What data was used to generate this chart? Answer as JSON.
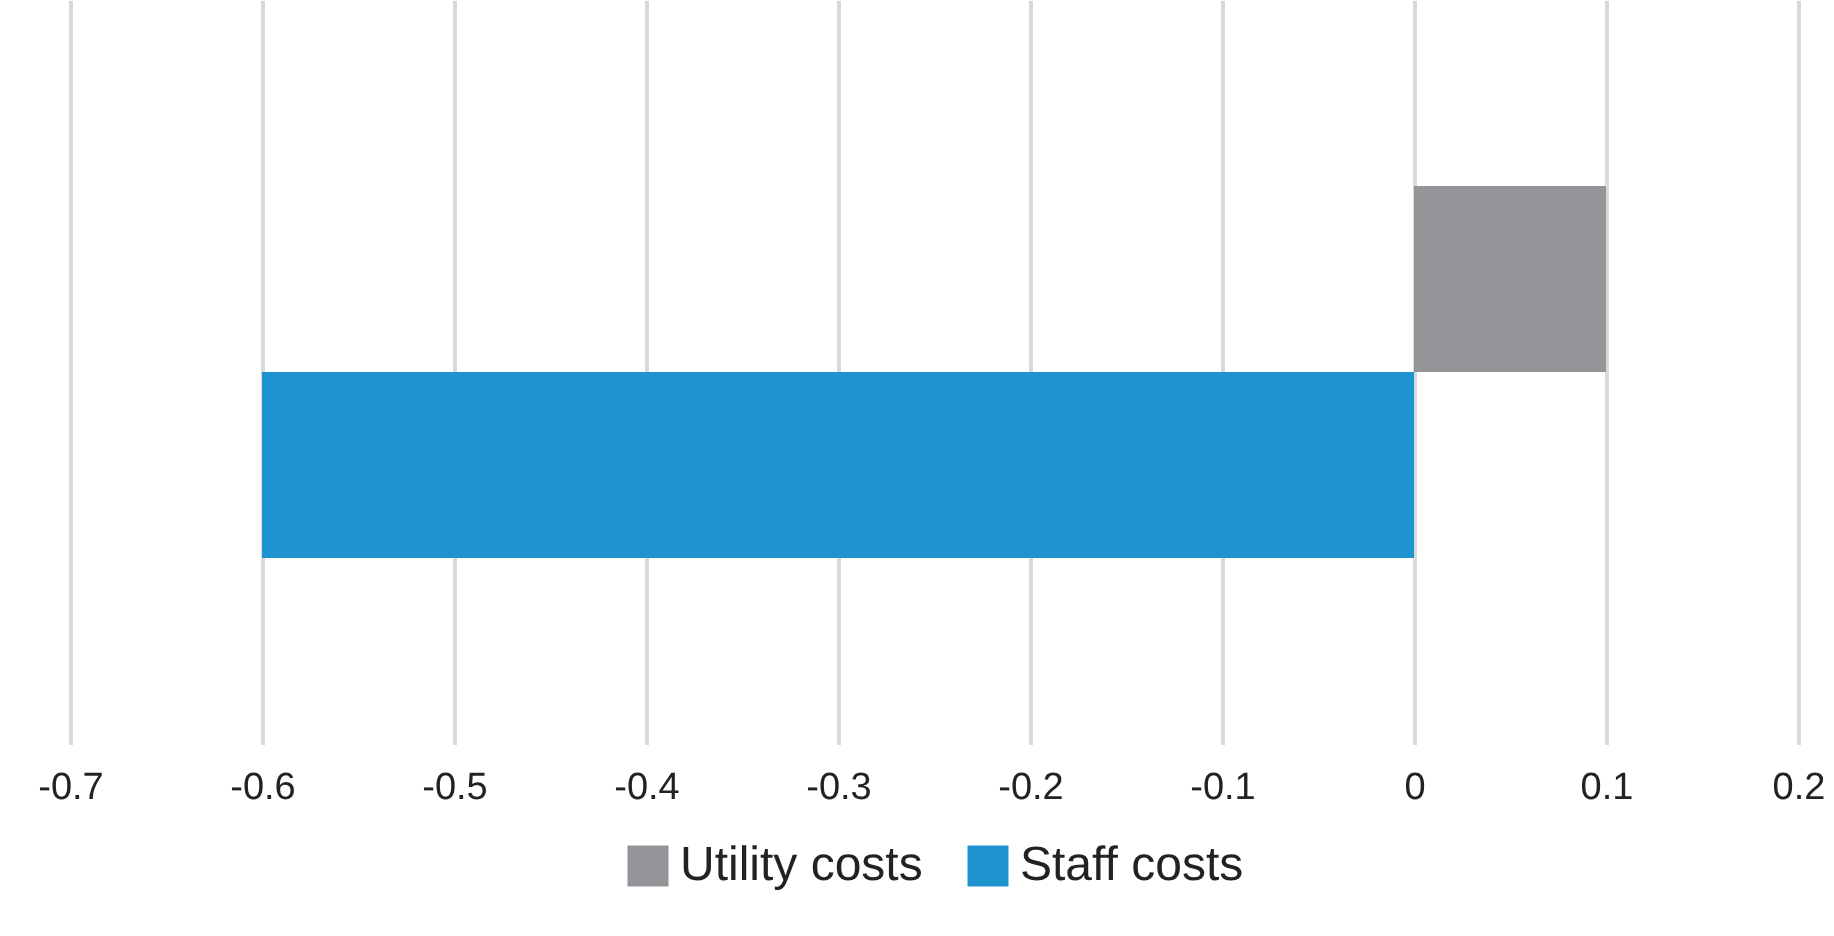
{
  "chart_data": {
    "type": "bar",
    "orientation": "horizontal",
    "categories": [
      null
    ],
    "series": [
      {
        "name": "Utility costs",
        "color": "#939598",
        "values": [
          0.1
        ]
      },
      {
        "name": "Staff costs",
        "color": "#1e93d0",
        "values": [
          -0.6
        ]
      }
    ],
    "xlim": [
      -0.7,
      0.2
    ],
    "xticks": [
      {
        "value": -0.7,
        "label": "-0.7"
      },
      {
        "value": -0.6,
        "label": "-0.6"
      },
      {
        "value": -0.5,
        "label": "-0.5"
      },
      {
        "value": -0.4,
        "label": "-0.4"
      },
      {
        "value": -0.3,
        "label": "-0.3"
      },
      {
        "value": -0.2,
        "label": "-0.2"
      },
      {
        "value": -0.1,
        "label": "-0.1"
      },
      {
        "value": 0,
        "label": "0"
      },
      {
        "value": 0.1,
        "label": "0.1"
      },
      {
        "value": 0.2,
        "label": "0.2"
      }
    ],
    "grid": "x",
    "legend": "bottom"
  }
}
